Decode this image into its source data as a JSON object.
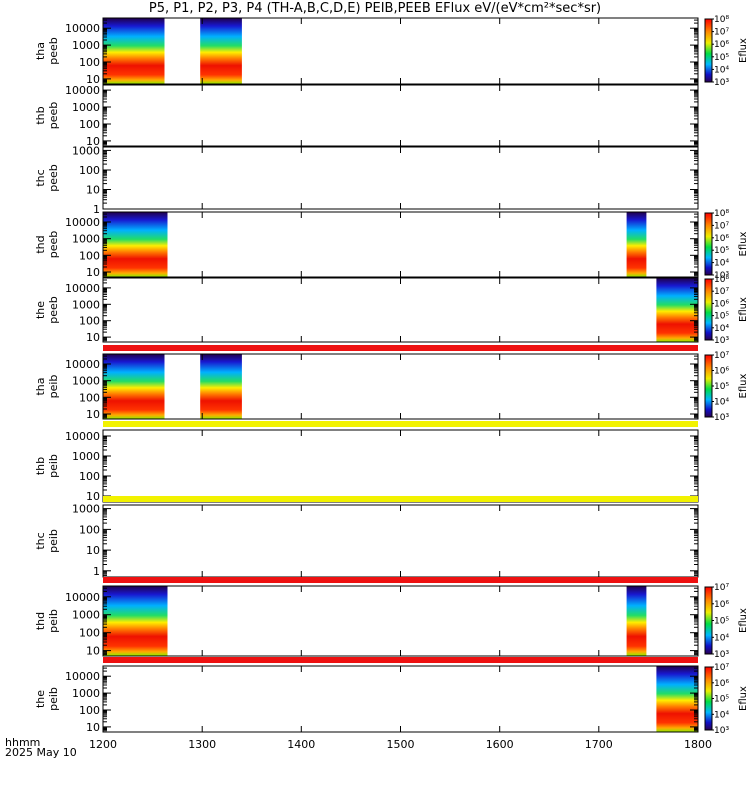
{
  "title": "P5, P1, P2, P3, P4 (TH-A,B,C,D,E) PEIB,PEEB EFlux eV/(eV*cm²*sec*sr)",
  "footer": {
    "units": "hhmm",
    "date": "2025 May 10"
  },
  "colors": {
    "axis": "#000000",
    "bar_red": "#ee1111",
    "bar_yellow": "#f2f200",
    "spectrum_scale": "rainbow"
  },
  "chart_data": [
    {
      "type": "heatmap",
      "x_ticks": [
        1200,
        1300,
        1400,
        1500,
        1600,
        1700,
        1800
      ],
      "xlim": [
        1200,
        1800
      ],
      "x_tick_format": "hhmm",
      "panels": [
        {
          "id": "tha-peeb",
          "label": [
            "tha",
            "peeb"
          ],
          "y_ticks": [
            "10",
            "100",
            "1000",
            "10000"
          ],
          "ylim": [
            5,
            40000
          ],
          "y_scale": "log",
          "colorbar": {
            "label": "Eflux",
            "ticks": [
              "10³",
              "10⁴",
              "10⁵",
              "10⁶",
              "10⁷",
              "10⁸"
            ]
          },
          "data_intervals": [
            [
              1200,
              1262
            ],
            [
              1298,
              1340
            ]
          ],
          "bar_above": null
        },
        {
          "id": "thb-peeb",
          "label": [
            "thb",
            "peeb"
          ],
          "y_ticks": [
            "10",
            "100",
            "1000",
            "10000"
          ],
          "ylim": [
            5,
            20000
          ],
          "y_scale": "log",
          "colorbar": null,
          "data_intervals": [],
          "bar_above": null
        },
        {
          "id": "thc-peeb",
          "label": [
            "thc",
            "peeb"
          ],
          "y_ticks": [
            "1",
            "10",
            "100",
            "1000"
          ],
          "ylim": [
            1,
            1500
          ],
          "y_scale": "log",
          "colorbar": null,
          "data_intervals": [],
          "bar_above": null
        },
        {
          "id": "thd-peeb",
          "label": [
            "thd",
            "peeb"
          ],
          "y_ticks": [
            "10",
            "100",
            "1000",
            "10000"
          ],
          "ylim": [
            5,
            40000
          ],
          "y_scale": "log",
          "colorbar": {
            "label": "Eflux",
            "ticks": [
              "10³",
              "10⁴",
              "10⁵",
              "10⁶",
              "10⁷",
              "10⁸"
            ]
          },
          "data_intervals": [
            [
              1200,
              1265
            ],
            [
              1728,
              1748
            ]
          ],
          "bar_above": null
        },
        {
          "id": "the-peeb",
          "label": [
            "the",
            "peeb"
          ],
          "y_ticks": [
            "10",
            "100",
            "1000",
            "10000"
          ],
          "ylim": [
            5,
            40000
          ],
          "y_scale": "log",
          "colorbar": {
            "label": "Eflux",
            "ticks": [
              "10³",
              "10⁴",
              "10⁵",
              "10⁶",
              "10⁷",
              "10⁸"
            ]
          },
          "data_intervals": [
            [
              1758,
              1800
            ]
          ],
          "bar_above": null
        },
        {
          "id": "tha-peib",
          "label": [
            "tha",
            "peib"
          ],
          "y_ticks": [
            "10",
            "100",
            "1000",
            "10000"
          ],
          "ylim": [
            5,
            40000
          ],
          "y_scale": "log",
          "colorbar": {
            "label": "Eflux",
            "ticks": [
              "10³",
              "10⁴",
              "10⁵",
              "10⁶",
              "10⁷"
            ]
          },
          "data_intervals": [
            [
              1200,
              1262
            ],
            [
              1298,
              1340
            ]
          ],
          "bar_above": "red"
        },
        {
          "id": "thb-peib",
          "label": [
            "thb",
            "peib"
          ],
          "y_ticks": [
            "10",
            "100",
            "1000",
            "10000"
          ],
          "ylim": [
            5,
            20000
          ],
          "y_scale": "log",
          "colorbar": null,
          "data_intervals": [],
          "bar_above": "yellow"
        },
        {
          "id": "thc-peib",
          "label": [
            "thc",
            "peib"
          ],
          "y_ticks": [
            "1",
            "10",
            "100",
            "1000"
          ],
          "ylim": [
            0.5,
            1500
          ],
          "y_scale": "log",
          "colorbar": null,
          "data_intervals": [],
          "bar_above": "yellow"
        },
        {
          "id": "thd-peib",
          "label": [
            "thd",
            "peib"
          ],
          "y_ticks": [
            "10",
            "100",
            "1000",
            "10000"
          ],
          "ylim": [
            5,
            40000
          ],
          "y_scale": "log",
          "colorbar": {
            "label": "Eflux",
            "ticks": [
              "10³",
              "10⁴",
              "10⁵",
              "10⁶",
              "10⁷"
            ]
          },
          "data_intervals": [
            [
              1200,
              1265
            ],
            [
              1728,
              1748
            ]
          ],
          "bar_above": "red"
        },
        {
          "id": "the-peib",
          "label": [
            "the",
            "peib"
          ],
          "y_ticks": [
            "10",
            "100",
            "1000",
            "10000"
          ],
          "ylim": [
            5,
            40000
          ],
          "y_scale": "log",
          "colorbar": {
            "label": "Eflux",
            "ticks": [
              "10³",
              "10⁴",
              "10⁵",
              "10⁶",
              "10⁷"
            ]
          },
          "data_intervals": [
            [
              1758,
              1800
            ]
          ],
          "bar_above": "red"
        }
      ]
    }
  ]
}
